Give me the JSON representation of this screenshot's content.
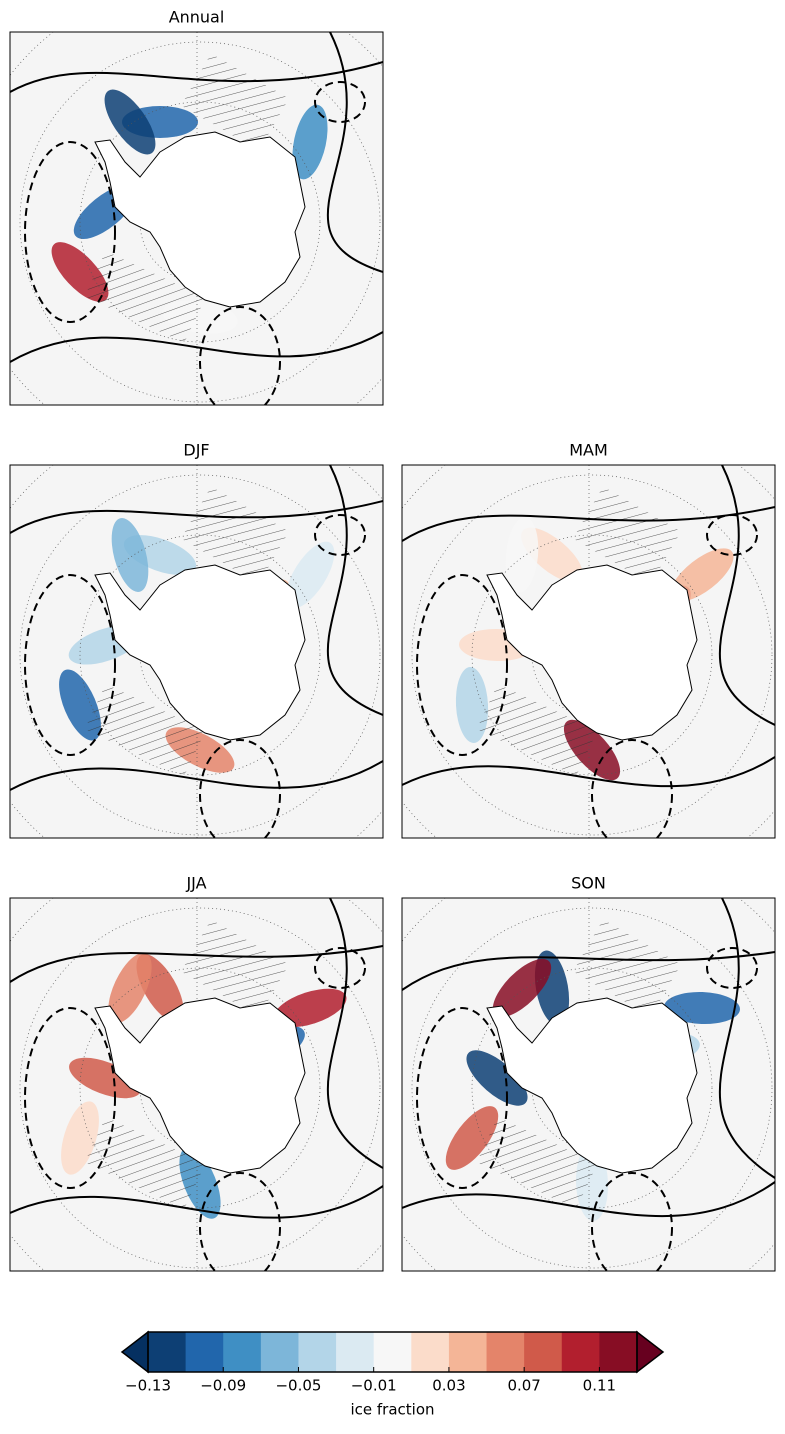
{
  "panels": [
    {
      "title": "Annual"
    },
    {
      "title": "DJF"
    },
    {
      "title": "MAM"
    },
    {
      "title": "JJA"
    },
    {
      "title": "SON"
    }
  ],
  "colorbar": {
    "label": "ice fraction",
    "levels": [
      -0.13,
      -0.11,
      -0.09,
      -0.07,
      -0.05,
      -0.03,
      -0.01,
      0.01,
      0.03,
      0.05,
      0.07,
      0.09,
      0.11,
      0.13
    ],
    "colors": [
      "#0d3f74",
      "#2166ac",
      "#3f8fc4",
      "#7db6d9",
      "#b3d5e8",
      "#dbeaf2",
      "#f7f7f7",
      "#fbdcca",
      "#f4b597",
      "#e4846a",
      "#d05a4a",
      "#b21f2e",
      "#870d24"
    ],
    "under_color": "#053061",
    "over_color": "#67001f",
    "ticks": [
      {
        "value": -0.13,
        "label": "−0.13"
      },
      {
        "value": -0.09,
        "label": "−0.09"
      },
      {
        "value": -0.05,
        "label": "−0.05"
      },
      {
        "value": -0.01,
        "label": "−0.01"
      },
      0.03,
      0.07,
      0.11
    ]
  }
}
